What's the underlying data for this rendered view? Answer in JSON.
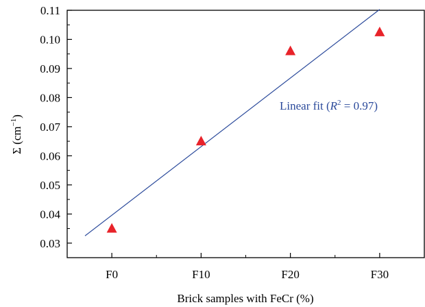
{
  "chart_data": {
    "type": "scatter",
    "title": "",
    "xlabel": "Brick samples with FeCr (%)",
    "ylabel": {
      "main": "Σ (cm",
      "sup": "−1",
      "close": ")"
    },
    "categories": [
      "F0",
      "F10",
      "F20",
      "F30"
    ],
    "x": [
      0,
      10,
      20,
      30
    ],
    "xlim": [
      -5,
      35
    ],
    "ylim": [
      0.025,
      0.11
    ],
    "yticks": [
      0.03,
      0.04,
      0.05,
      0.06,
      0.07,
      0.08,
      0.09,
      0.1,
      0.11
    ],
    "ytick_labels": [
      "0.03",
      "0.04",
      "0.05",
      "0.06",
      "0.07",
      "0.08",
      "0.09",
      "0.10",
      "0.11"
    ],
    "series": [
      {
        "marker": "triangle",
        "color": "#e8232a",
        "values": [
          0.035,
          0.065,
          0.096,
          0.1025
        ]
      }
    ],
    "fit": {
      "type": "linear",
      "color": "#2b4a9b",
      "x_range": [
        -3,
        30
      ],
      "y_range": [
        0.0325,
        0.1103
      ],
      "label": {
        "prefix": "Linear fit (",
        "r": "R",
        "sup": "2",
        "rest": " = 0.97)"
      }
    },
    "grid": false,
    "legend": "none"
  }
}
